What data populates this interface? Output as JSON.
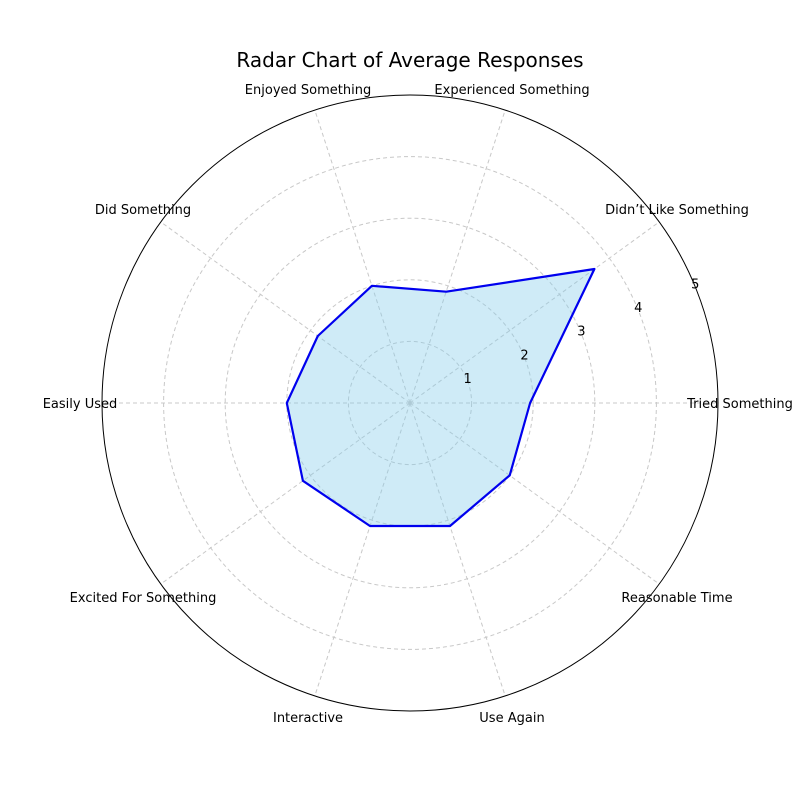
{
  "chart_data": {
    "type": "radar",
    "title": "Radar Chart of Average Responses",
    "categories": [
      "Tried Something",
      "Didn’t Like Something",
      "Experienced Something",
      "Enjoyed Something",
      "Did Something",
      "Easily Used",
      "Excited For Something",
      "Interactive",
      "Use Again",
      "Reasonable Time"
    ],
    "series": [
      {
        "values": [
          1.95,
          3.7,
          1.9,
          2.0,
          1.85,
          2.0,
          2.15,
          2.1,
          2.1,
          2.0
        ],
        "line_color": "#0000ee",
        "fill_color": "#87ceeb"
      }
    ],
    "r_ticks": [
      "1",
      "2",
      "3",
      "4",
      "5"
    ],
    "r_max": 5,
    "grid": true
  }
}
